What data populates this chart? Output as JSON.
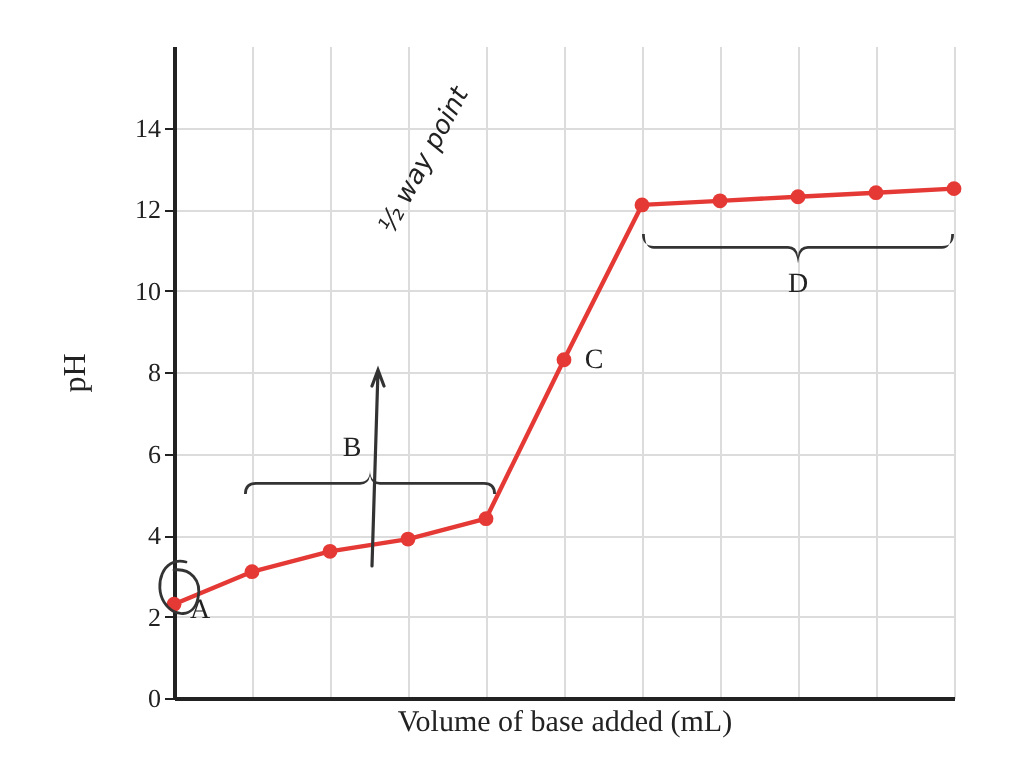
{
  "chart_data": {
    "type": "line",
    "xlabel": "Volume of base added (mL)",
    "ylabel": "pH",
    "categories": [
      null,
      null,
      null,
      null,
      null,
      null,
      null,
      null,
      null,
      null,
      null
    ],
    "ylim": [
      0,
      16
    ],
    "yticks": [
      0,
      2,
      4,
      6,
      8,
      10,
      12,
      14
    ],
    "grid": true,
    "tick_labels": "y",
    "marker": "circle",
    "annotations": [
      "A",
      "B",
      "C",
      "D",
      "½ way point"
    ],
    "series": [
      {
        "color": "#e53935",
        "values": [
          2.3,
          3.1,
          3.6,
          3.9,
          4.4,
          8.3,
          12.1,
          12.2,
          12.3,
          12.4,
          12.5
        ]
      }
    ]
  }
}
